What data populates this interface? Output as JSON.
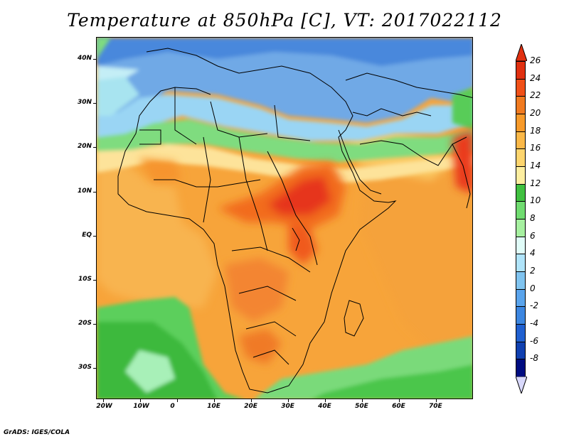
{
  "title": "Temperature at 850hPa [C], VT: 2017022112",
  "credit": "GrADS: IGES/COLA",
  "map": {
    "lon_range": [
      -22,
      80
    ],
    "lat_range": [
      -37,
      45
    ],
    "lat_labels": [
      "40N",
      "30N",
      "20N",
      "10N",
      "EQ",
      "10S",
      "20S",
      "30S"
    ],
    "lat_values": [
      40,
      30,
      20,
      10,
      0,
      -10,
      -20,
      -30
    ],
    "lon_labels": [
      "20W",
      "10W",
      "0",
      "10E",
      "20E",
      "30E",
      "40E",
      "50E",
      "60E",
      "70E"
    ],
    "lon_values": [
      -20,
      -10,
      0,
      10,
      20,
      30,
      40,
      50,
      60,
      70
    ]
  },
  "colorbar": {
    "labels": [
      "26",
      "24",
      "22",
      "20",
      "18",
      "16",
      "14",
      "12",
      "10",
      "8",
      "6",
      "4",
      "2",
      "0",
      "-2",
      "-4",
      "-6",
      "-8"
    ],
    "colors": [
      "#e03010",
      "#f05018",
      "#f07a20",
      "#f79a2a",
      "#fab848",
      "#fdd56e",
      "#fdeea0",
      "#40c040",
      "#70dc70",
      "#a6f0a0",
      "#e0fcf8",
      "#b0e4fa",
      "#80c4f0",
      "#5aa4ec",
      "#3c86e0",
      "#2060d0",
      "#1040b0",
      "#000c80"
    ]
  },
  "fields": {
    "background": "#f5a640",
    "cold_zone": "#6ca8e8",
    "land_outline": "#000000"
  }
}
